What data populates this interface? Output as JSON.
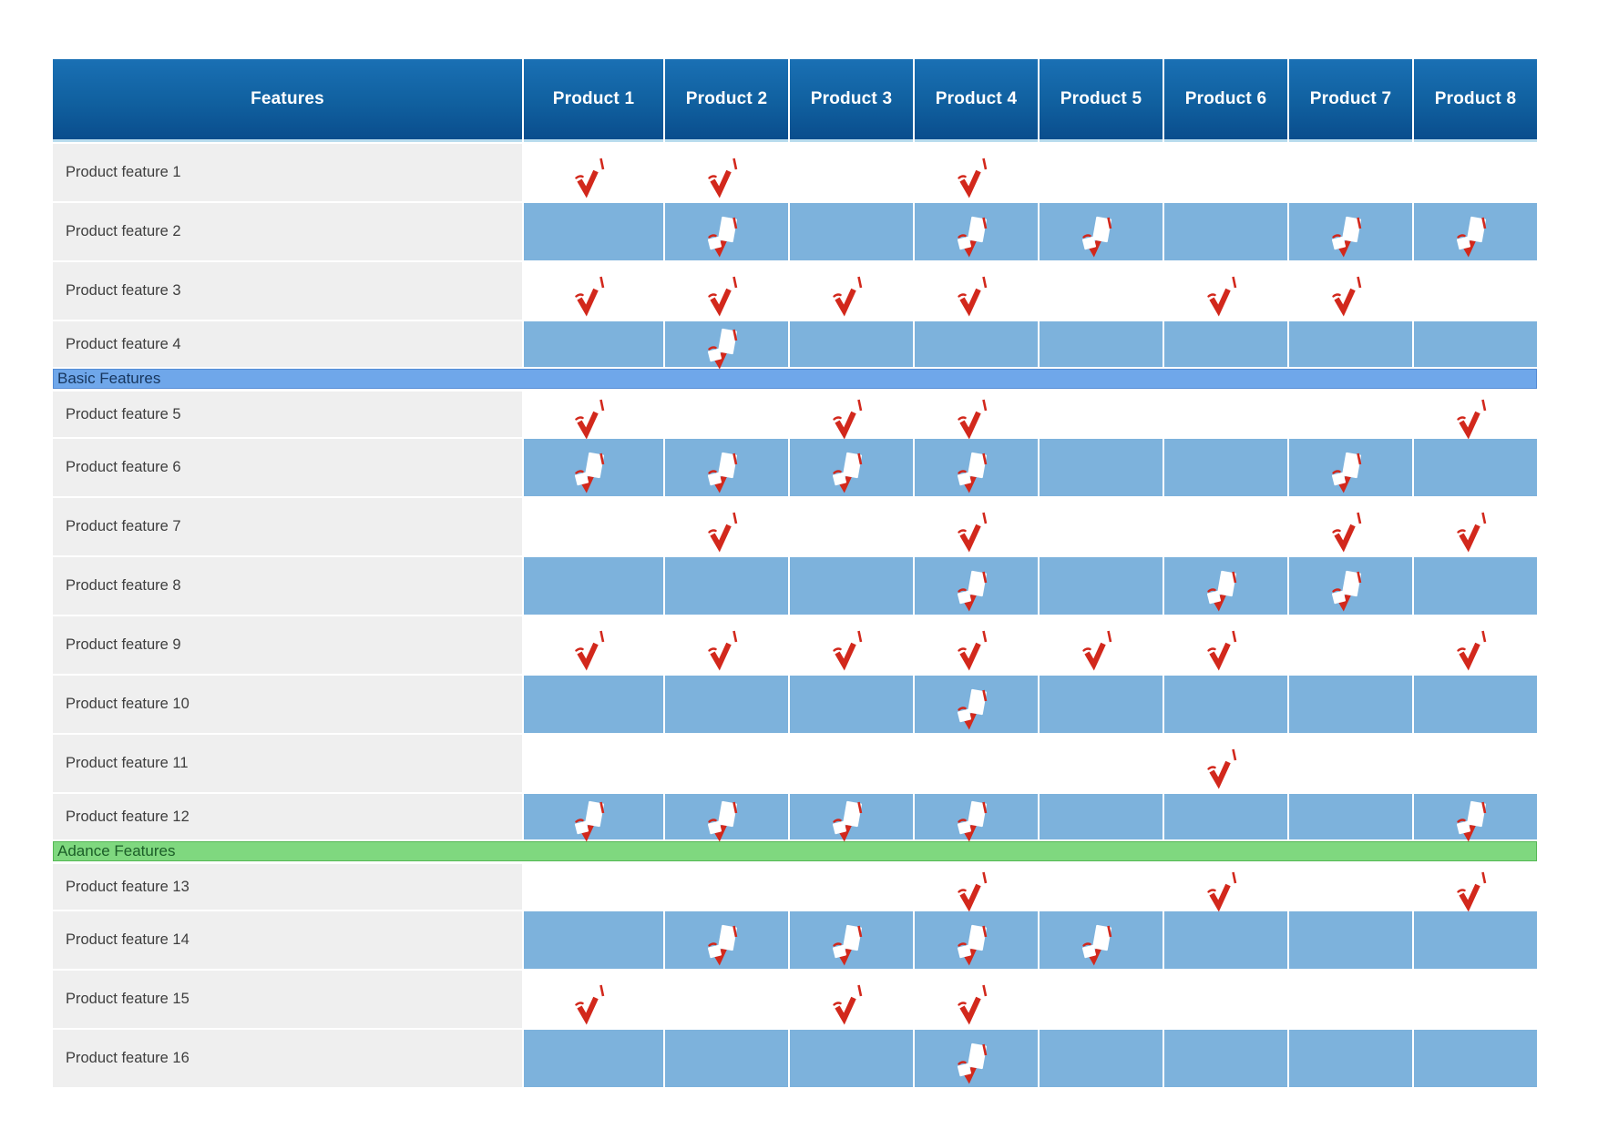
{
  "chart_data": {
    "type": "table",
    "columns": [
      "Features",
      "Product 1",
      "Product 2",
      "Product 3",
      "Product 4",
      "Product 5",
      "Product 6",
      "Product 7",
      "Product 8"
    ],
    "rows": [
      {
        "type": "feature",
        "label": "Product feature 1",
        "checks": [
          1,
          2,
          4
        ]
      },
      {
        "type": "feature",
        "label": "Product feature 2",
        "checks": [
          2,
          4,
          5,
          7,
          8
        ]
      },
      {
        "type": "feature",
        "label": "Product feature 3",
        "checks": [
          1,
          2,
          3,
          4,
          6,
          7
        ]
      },
      {
        "type": "feature",
        "label": "Product feature 4",
        "checks": [
          2
        ]
      },
      {
        "type": "divider",
        "label": "Basic Features",
        "style": "blue"
      },
      {
        "type": "feature",
        "label": "Product feature 5",
        "checks": [
          1,
          3,
          4,
          8
        ]
      },
      {
        "type": "feature",
        "label": "Product feature 6",
        "checks": [
          1,
          2,
          3,
          4,
          7
        ]
      },
      {
        "type": "feature",
        "label": "Product feature 7",
        "checks": [
          2,
          4,
          7,
          8
        ]
      },
      {
        "type": "feature",
        "label": "Product feature 8",
        "checks": [
          4,
          6,
          7
        ]
      },
      {
        "type": "feature",
        "label": "Product feature 9",
        "checks": [
          1,
          2,
          3,
          4,
          5,
          6,
          8
        ]
      },
      {
        "type": "feature",
        "label": "Product feature 10",
        "checks": [
          4
        ]
      },
      {
        "type": "feature",
        "label": "Product feature 11",
        "checks": [
          6
        ]
      },
      {
        "type": "feature",
        "label": "Product feature 12",
        "checks": [
          1,
          2,
          3,
          4,
          8
        ]
      },
      {
        "type": "divider",
        "label": "Adance Features",
        "style": "green"
      },
      {
        "type": "feature",
        "label": "Product feature 13",
        "checks": [
          4,
          6,
          8
        ]
      },
      {
        "type": "feature",
        "label": "Product feature 14",
        "checks": [
          2,
          3,
          4,
          5
        ]
      },
      {
        "type": "feature",
        "label": "Product feature 15",
        "checks": [
          1,
          3,
          4
        ]
      },
      {
        "type": "feature",
        "label": "Product feature 16",
        "checks": [
          4
        ]
      }
    ],
    "cell_mark": "red-check-icon",
    "legend_position": "none",
    "grid": true
  },
  "colors": {
    "header_bg_top": "#1A70B4",
    "header_bg_bottom": "#0A4D8D",
    "header_text": "#FFFFFF",
    "checked_cell_blue": "#7DB2DC",
    "feature_label_bg": "#EFEFEF",
    "feature_label_text": "#3E3E3E",
    "divider_blue_bg": "#6FA7EA",
    "divider_blue_text": "#17365D",
    "divider_green_bg": "#7FD87F",
    "divider_green_text": "#1C5E28",
    "check_red": "#D2281C"
  }
}
